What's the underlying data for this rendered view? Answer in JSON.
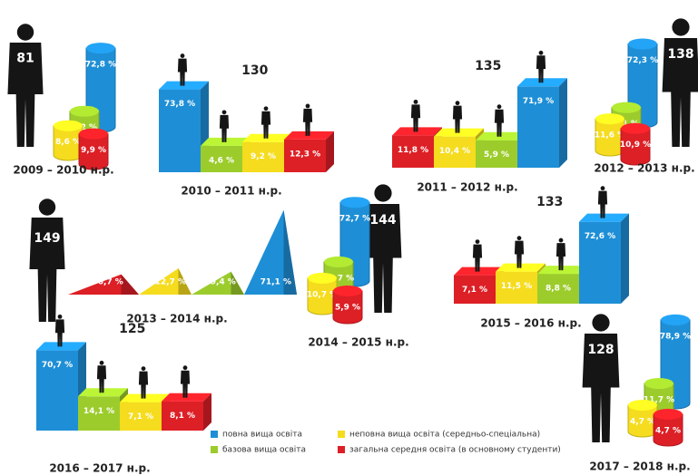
{
  "chart_data": [
    {
      "type": "cylinder",
      "title": "2009 – 2010 н.р.",
      "total": 81,
      "values": [
        72.8,
        6.2,
        8.6,
        9.9
      ],
      "value_labels": [
        "72,8 %",
        "6,2 %",
        "8,6 %",
        "9,9 %"
      ],
      "colors": [
        "#1e8fd6",
        "#9ccc2c",
        "#f5dc1e",
        "#dd1f26"
      ]
    },
    {
      "type": "step",
      "title": "2010 – 2011 н.р.",
      "total": 130,
      "values": [
        73.8,
        4.6,
        9.2,
        12.3
      ],
      "value_labels": [
        "73,8 %",
        "4,6 %",
        "9,2 %",
        "12,3 %"
      ],
      "colors": [
        "#1e8fd6",
        "#9ccc2c",
        "#f5dc1e",
        "#dd1f26"
      ]
    },
    {
      "type": "step",
      "title": "2011 – 2012 н.р.",
      "total": 135,
      "values": [
        11.8,
        10.4,
        5.9,
        71.9
      ],
      "value_labels": [
        "11,8 %",
        "10,4 %",
        "5,9 %",
        "71,9 %"
      ],
      "colors": [
        "#dd1f26",
        "#f5dc1e",
        "#9ccc2c",
        "#1e8fd6"
      ]
    },
    {
      "type": "cylinder",
      "title": "2012 – 2013 н.р.",
      "total": 138,
      "values": [
        72.3,
        5.1,
        11.6,
        10.9
      ],
      "value_labels": [
        "72,3 %",
        "5,1 %",
        "11,6 %",
        "10,9 %"
      ],
      "colors": [
        "#1e8fd6",
        "#9ccc2c",
        "#f5dc1e",
        "#dd1f26"
      ]
    },
    {
      "type": "triangle",
      "title": "2013 – 2014 н.р.",
      "total": 149,
      "values": [
        6.7,
        12.7,
        9.4,
        71.1
      ],
      "value_labels": [
        "6,7 %",
        "12,7 %",
        "9,4 %",
        "71,1 %"
      ],
      "colors": [
        "#dd1f26",
        "#f5dc1e",
        "#9ccc2c",
        "#1e8fd6"
      ]
    },
    {
      "type": "cylinder",
      "title": "2014 – 2015 н.р.",
      "total": 144,
      "values": [
        72.7,
        10.7,
        10.7,
        5.9
      ],
      "value_labels": [
        "72,7 %",
        "10,7 %",
        "10,7 %",
        "5,9 %"
      ],
      "colors": [
        "#1e8fd6",
        "#9ccc2c",
        "#f5dc1e",
        "#dd1f26"
      ]
    },
    {
      "type": "step",
      "title": "2015 – 2016 н.р.",
      "total": 133,
      "values": [
        7.1,
        11.5,
        8.8,
        72.6
      ],
      "value_labels": [
        "7,1 %",
        "11,5 %",
        "8,8 %",
        "72,6 %"
      ],
      "colors": [
        "#dd1f26",
        "#f5dc1e",
        "#9ccc2c",
        "#1e8fd6"
      ]
    },
    {
      "type": "step",
      "title": "2016 – 2017 н.р.",
      "total": 125,
      "values": [
        70.7,
        14.1,
        7.1,
        8.1
      ],
      "value_labels": [
        "70,7 %",
        "14,1 %",
        "7,1 %",
        "8,1 %"
      ],
      "colors": [
        "#1e8fd6",
        "#9ccc2c",
        "#f5dc1e",
        "#dd1f26"
      ]
    },
    {
      "type": "cylinder",
      "title": "2017 – 2018 н.р.",
      "total": 128,
      "values": [
        78.9,
        11.7,
        4.7,
        4.7
      ],
      "value_labels": [
        "78,9 %",
        "11,7 %",
        "4,7 %",
        "4,7 %"
      ],
      "colors": [
        "#1e8fd6",
        "#9ccc2c",
        "#f5dc1e",
        "#dd1f26"
      ]
    }
  ],
  "legend": [
    {
      "name": "повна вища освіта",
      "color": "#1e8fd6"
    },
    {
      "name": "базова вища освіта",
      "color": "#9ccc2c"
    },
    {
      "name": "неповна вища освіта (середньо-спеціальна)",
      "color": "#f5dc1e"
    },
    {
      "name": "загальна середня освіта (в основному студенти)",
      "color": "#dd1f26"
    }
  ]
}
